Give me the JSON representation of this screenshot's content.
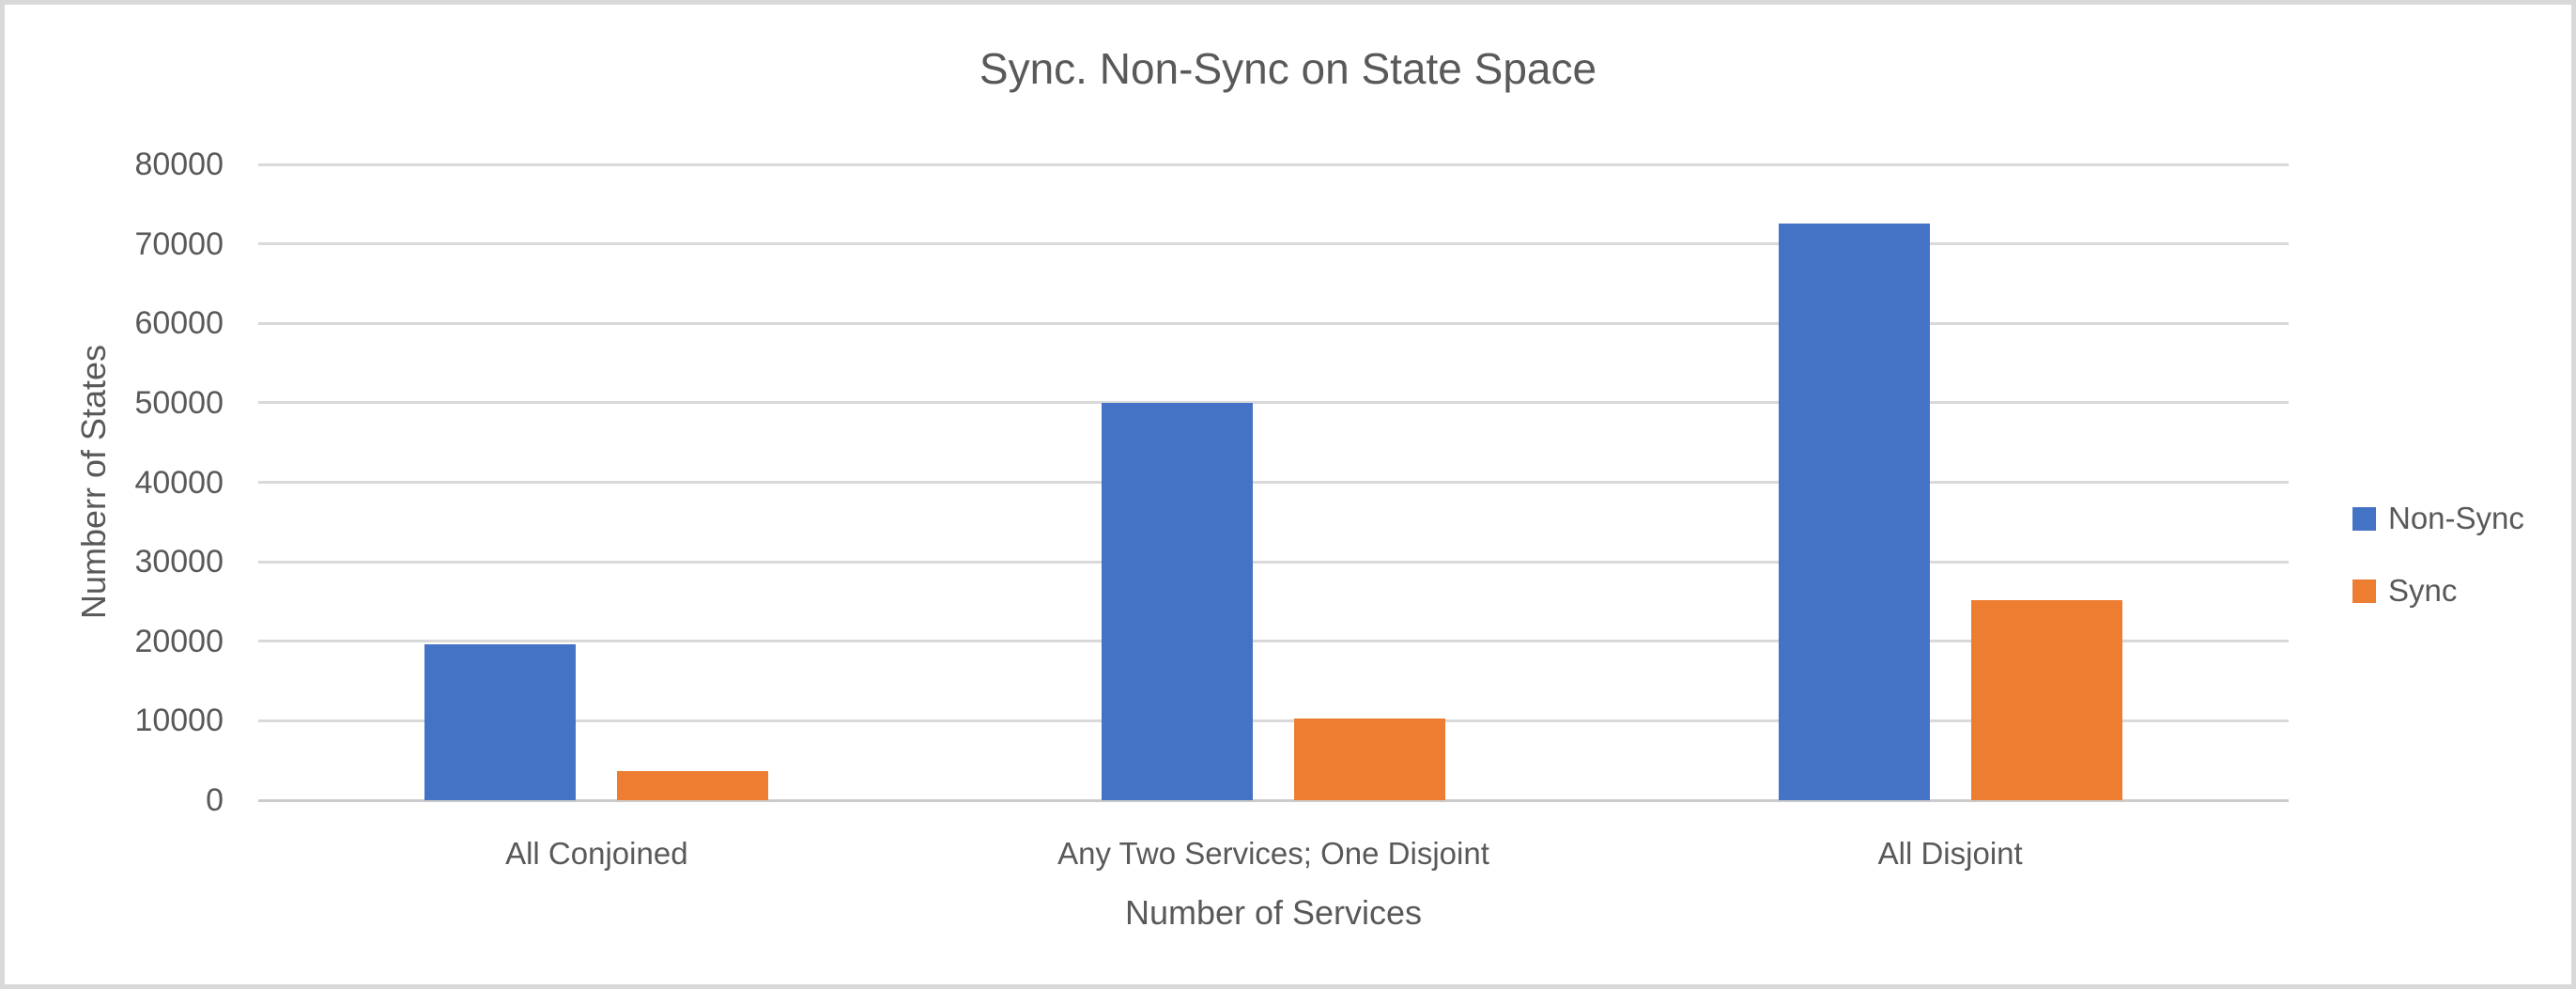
{
  "colors": {
    "non_sync": "#4472C4",
    "sync": "#ED7D31",
    "text": "#595959",
    "gridline": "#D9D9D9",
    "axis_line": "#CBCBCB",
    "frame_border": "#D9D9D9",
    "background": "#FFFFFF"
  },
  "legend": {
    "position": "right",
    "items": [
      {
        "label": "Non-Sync",
        "color": "#4472C4"
      },
      {
        "label": "Sync",
        "color": "#ED7D31"
      }
    ]
  },
  "chart_data": {
    "type": "bar",
    "title": "Sync. Non-Sync on State Space",
    "xlabel": "Number of Services",
    "ylabel": "Numberr of States",
    "categories": [
      "All Conjoined",
      "Any Two Services; One Disjoint",
      "All Disjoint"
    ],
    "series": [
      {
        "name": "Non-Sync",
        "color": "#4472C4",
        "values": [
          19600,
          50000,
          72500
        ]
      },
      {
        "name": "Sync",
        "color": "#ED7D31",
        "values": [
          3700,
          10300,
          25200
        ]
      }
    ],
    "ylim": [
      0,
      80000
    ],
    "ytick_step": 10000,
    "ytick_labels": [
      "0",
      "10000",
      "20000",
      "30000",
      "40000",
      "50000",
      "60000",
      "70000",
      "80000"
    ],
    "grid": true,
    "legend_position": "right"
  }
}
